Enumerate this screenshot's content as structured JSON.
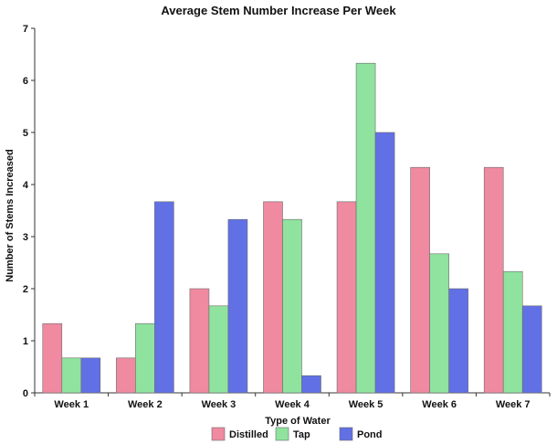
{
  "chart_data": {
    "type": "bar",
    "title": "Average Stem Number Increase Per Week",
    "xlabel": "Type of Water",
    "ylabel": "Number of Stems Increased",
    "categories": [
      "Week 1",
      "Week 2",
      "Week 3",
      "Week 4",
      "Week 5",
      "Week 6",
      "Week 7"
    ],
    "series": [
      {
        "name": "Distilled",
        "color": "#ef8aa0",
        "values": [
          1.33,
          0.67,
          2.0,
          3.67,
          3.67,
          4.33,
          4.33
        ]
      },
      {
        "name": "Tap",
        "color": "#8fe39f",
        "values": [
          0.67,
          1.33,
          1.67,
          3.33,
          6.33,
          2.67,
          2.33
        ]
      },
      {
        "name": "Pond",
        "color": "#6270e6",
        "values": [
          0.67,
          3.67,
          3.33,
          0.33,
          5.0,
          2.0,
          1.67
        ]
      }
    ],
    "ylim": [
      0,
      7
    ],
    "yticks": [
      0,
      1,
      2,
      3,
      4,
      5,
      6,
      7
    ],
    "grid": false,
    "legend_position": "bottom"
  }
}
